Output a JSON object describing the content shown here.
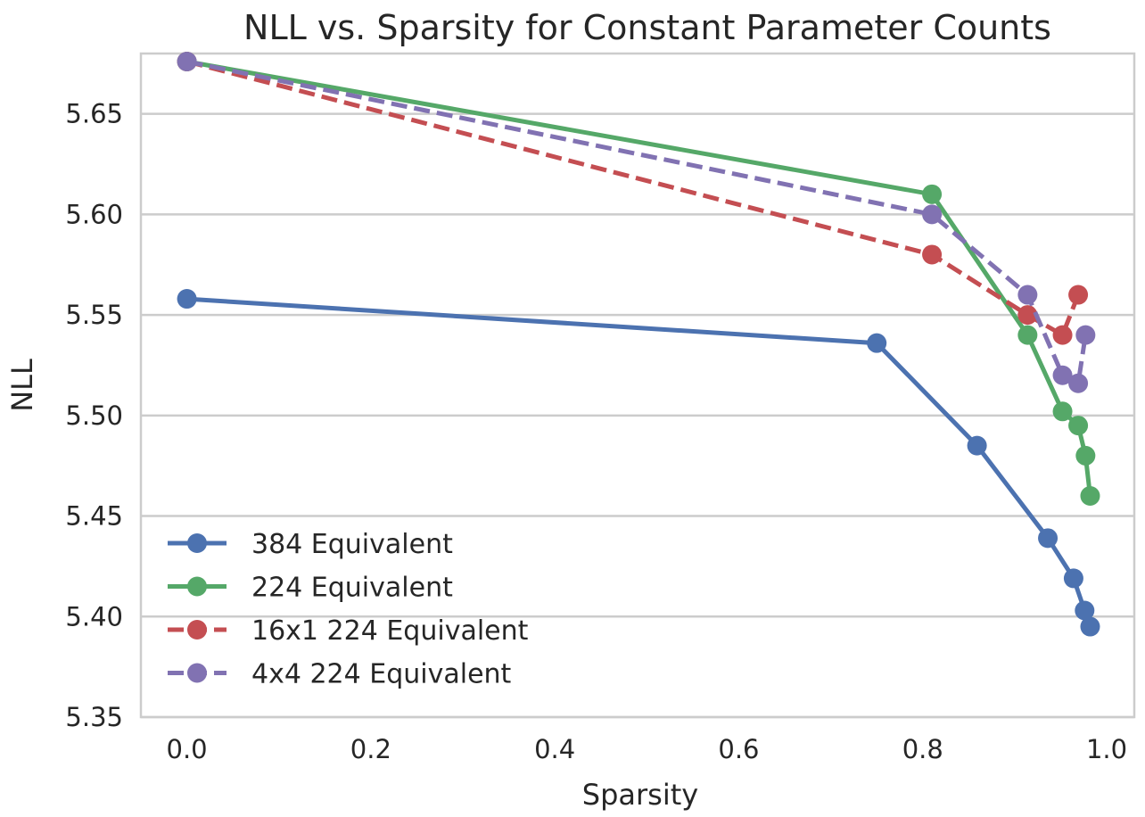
{
  "chart_data": {
    "type": "line",
    "title": "NLL vs. Sparsity for Constant Parameter Counts",
    "xlabel": "Sparsity",
    "ylabel": "NLL",
    "xlim": [
      -0.05,
      1.03
    ],
    "ylim": [
      5.35,
      5.68
    ],
    "xticks": [
      "0.0",
      "0.2",
      "0.4",
      "0.6",
      "0.8",
      "1.0"
    ],
    "yticks": [
      "5.35",
      "5.40",
      "5.45",
      "5.50",
      "5.55",
      "5.60",
      "5.65"
    ],
    "grid": "horizontal",
    "legend_position": "lower-left",
    "series": [
      {
        "name": "384 Equivalent",
        "color": "#4c72b0",
        "dash": "solid",
        "x": [
          0.0,
          0.75,
          0.859,
          0.936,
          0.964,
          0.976,
          0.982
        ],
        "y": [
          5.558,
          5.536,
          5.485,
          5.439,
          5.419,
          5.403,
          5.395
        ]
      },
      {
        "name": "224 Equivalent",
        "color": "#55a868",
        "dash": "solid",
        "x": [
          0.0,
          0.81,
          0.914,
          0.952,
          0.969,
          0.977,
          0.982
        ],
        "y": [
          5.676,
          5.61,
          5.54,
          5.502,
          5.495,
          5.48,
          5.46
        ]
      },
      {
        "name": "16x1 224 Equivalent",
        "color": "#c44e52",
        "dash": "dashed",
        "x": [
          0.0,
          0.81,
          0.914,
          0.952,
          0.969
        ],
        "y": [
          5.676,
          5.58,
          5.55,
          5.54,
          5.56
        ]
      },
      {
        "name": "4x4 224 Equivalent",
        "color": "#8172b2",
        "dash": "dashed",
        "x": [
          0.0,
          0.81,
          0.914,
          0.952,
          0.969,
          0.977
        ],
        "y": [
          5.676,
          5.6,
          5.56,
          5.52,
          5.516,
          5.54
        ]
      }
    ]
  }
}
